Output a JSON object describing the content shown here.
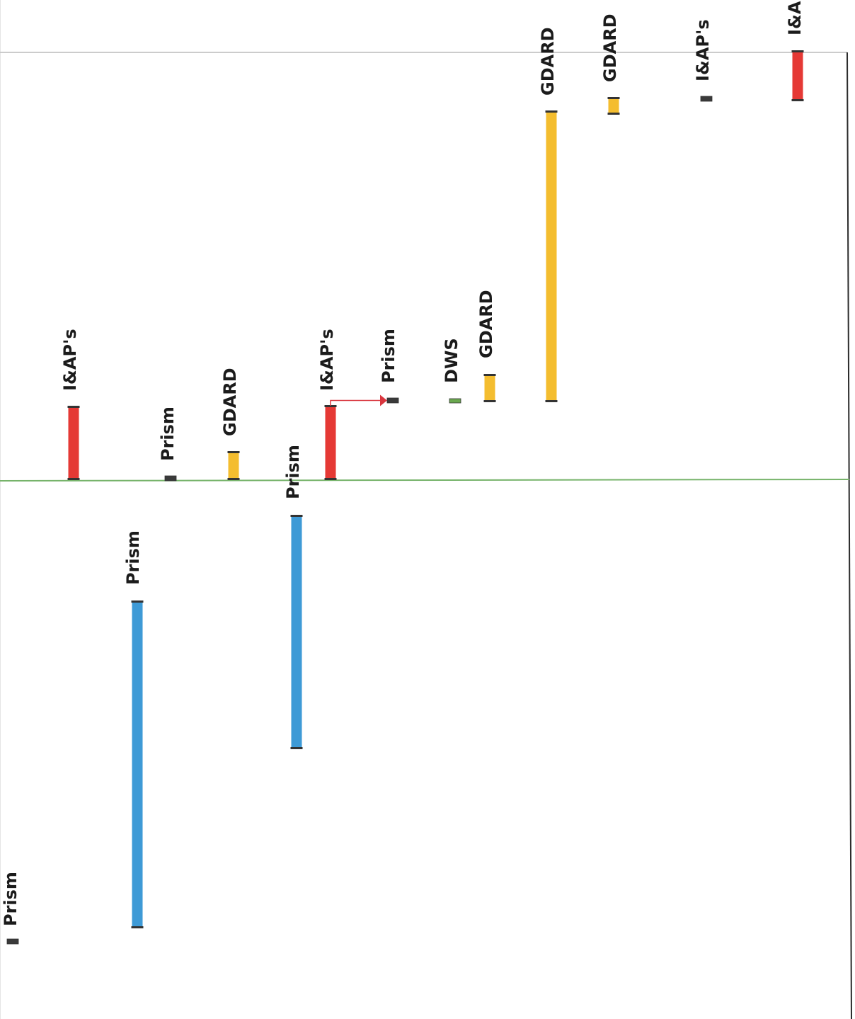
{
  "colors": {
    "i_and_ap": "#e53935",
    "gdard": "#f4bd2f",
    "prism_bar": "#3e9ad6",
    "milestone": "#3a3a3a",
    "dws": "#6aa84f",
    "today_line": "#76b36a",
    "grid_line": "#9a9a9a",
    "frame": "#2b2b2b",
    "link": "#d9363e"
  },
  "tasks": [
    {
      "id": "t1",
      "label": "Prism",
      "kind": "milestone"
    },
    {
      "id": "t2",
      "label": "I&AP's",
      "kind": "bar",
      "color_key": "i_and_ap"
    },
    {
      "id": "t3",
      "label": "Prism",
      "kind": "bar",
      "color_key": "prism_bar"
    },
    {
      "id": "t4",
      "label": "Prism",
      "kind": "milestone"
    },
    {
      "id": "t5",
      "label": "GDARD",
      "kind": "bar",
      "color_key": "gdard"
    },
    {
      "id": "t6",
      "label": "Prism",
      "kind": "bar",
      "color_key": "prism_bar"
    },
    {
      "id": "t7",
      "label": "I&AP's",
      "kind": "bar",
      "color_key": "i_and_ap"
    },
    {
      "id": "t8",
      "label": "Prism",
      "kind": "milestone"
    },
    {
      "id": "t9",
      "label": "DWS",
      "kind": "milestone",
      "color_key": "dws"
    },
    {
      "id": "t10",
      "label": "GDARD",
      "kind": "bar",
      "color_key": "gdard"
    },
    {
      "id": "t11",
      "label": "GDARD",
      "kind": "bar",
      "color_key": "gdard"
    },
    {
      "id": "t12",
      "label": "GDARD",
      "kind": "bar",
      "color_key": "gdard"
    },
    {
      "id": "t13",
      "label": "I&AP's",
      "kind": "milestone"
    },
    {
      "id": "t14",
      "label": "I&AP's",
      "kind": "bar",
      "color_key": "i_and_ap"
    }
  ],
  "dependencies": [
    {
      "from": "t7",
      "to": "t8"
    }
  ]
}
